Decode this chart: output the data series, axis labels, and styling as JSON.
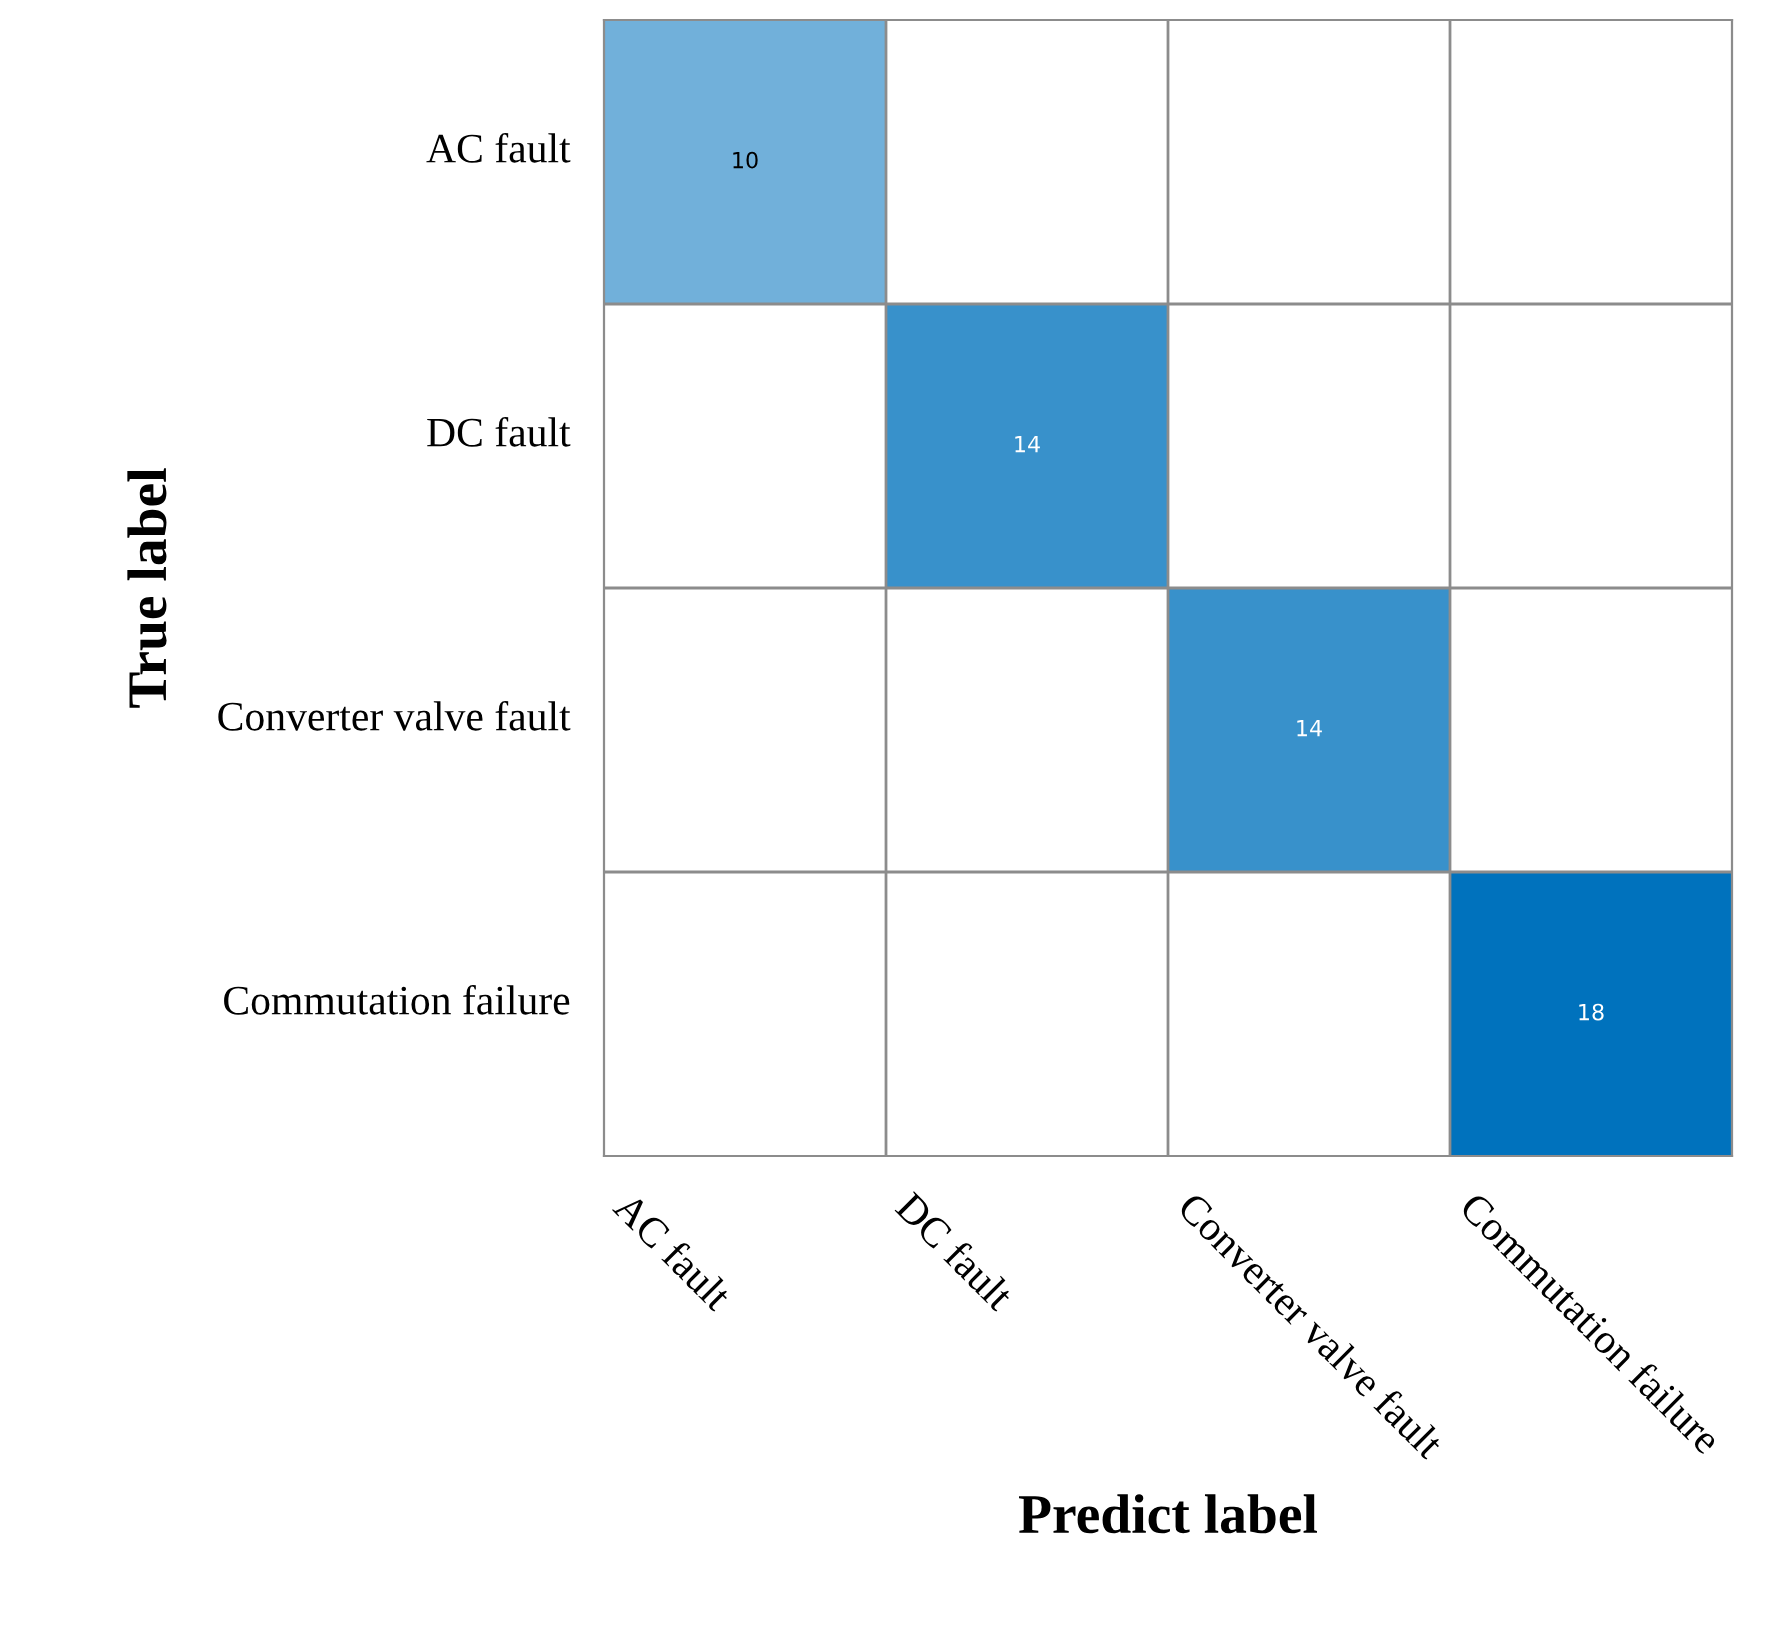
{
  "chart_data": {
    "type": "heatmap",
    "xlabel": "Predict label",
    "ylabel": "True label",
    "categories": [
      "AC fault",
      "DC fault",
      "Converter valve fault",
      "Commutation failure"
    ],
    "y_categories": [
      "AC fault",
      "DC fault",
      "Converter valve fault",
      "Commutation failure"
    ],
    "cells": [
      [
        10,
        null,
        null,
        null
      ],
      [
        null,
        14,
        null,
        null
      ],
      [
        null,
        null,
        14,
        null
      ],
      [
        null,
        null,
        null,
        18
      ]
    ],
    "color": "#0072bd",
    "data_labels": true,
    "grid": true
  }
}
